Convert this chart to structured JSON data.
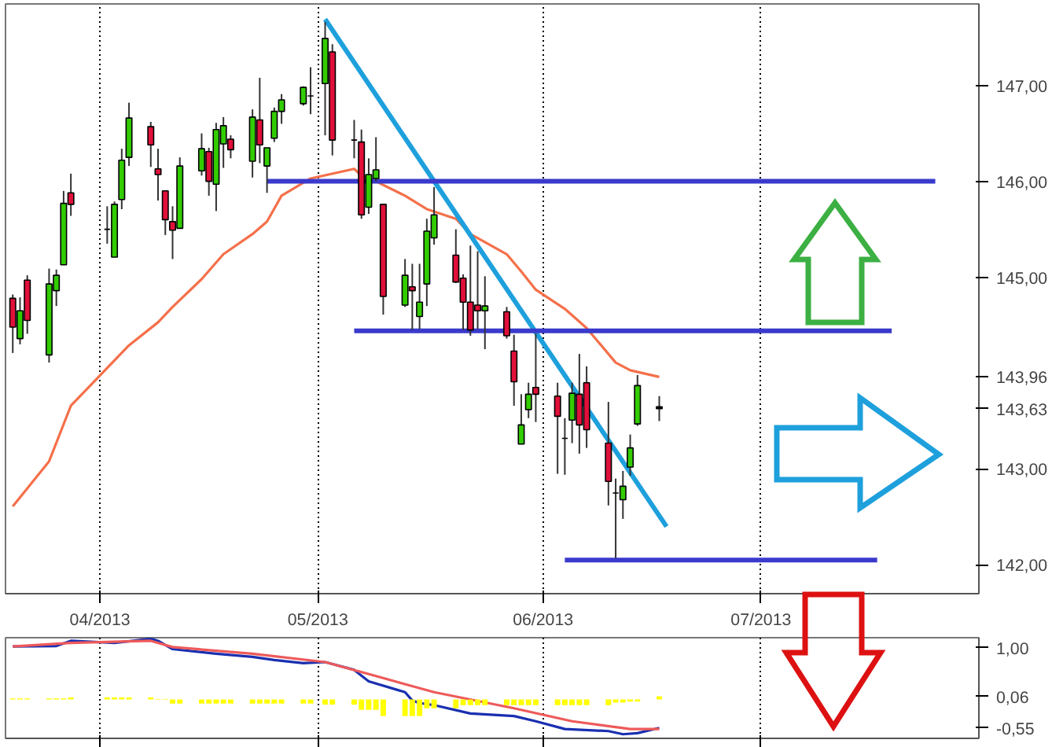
{
  "chart_data": [
    {
      "type": "candlestick",
      "x": [
        "2013-03-20",
        "2013-03-21",
        "2013-03-22",
        "2013-03-25",
        "2013-03-26",
        "2013-03-27",
        "2013-03-28",
        "2013-04-02",
        "2013-04-03",
        "2013-04-04",
        "2013-04-05",
        "2013-04-08",
        "2013-04-09",
        "2013-04-10",
        "2013-04-11",
        "2013-04-12",
        "2013-04-15",
        "2013-04-16",
        "2013-04-17",
        "2013-04-18",
        "2013-04-19",
        "2013-04-22",
        "2013-04-23",
        "2013-04-24",
        "2013-04-25",
        "2013-04-26",
        "2013-04-29",
        "2013-04-30",
        "2013-05-02",
        "2013-05-03",
        "2013-05-06",
        "2013-05-07",
        "2013-05-08",
        "2013-05-09",
        "2013-05-10",
        "2013-05-13",
        "2013-05-14",
        "2013-05-15",
        "2013-05-16",
        "2013-05-17",
        "2013-05-20",
        "2013-05-21",
        "2013-05-22",
        "2013-05-23",
        "2013-05-24",
        "2013-05-27",
        "2013-05-28",
        "2013-05-29",
        "2013-05-30",
        "2013-05-31",
        "2013-06-03",
        "2013-06-04",
        "2013-06-05",
        "2013-06-06",
        "2013-06-07",
        "2013-06-10",
        "2013-06-11",
        "2013-06-12",
        "2013-06-13",
        "2013-06-14",
        "2013-06-17"
      ],
      "ohlc": [
        [
          144.78,
          144.82,
          144.21,
          144.48
        ],
        [
          144.36,
          144.79,
          144.3,
          144.65
        ],
        [
          144.97,
          145.02,
          144.41,
          144.55
        ],
        [
          144.19,
          145.09,
          144.11,
          144.93
        ],
        [
          144.86,
          145.08,
          144.7,
          145.02
        ],
        [
          145.13,
          145.9,
          145.13,
          145.77
        ],
        [
          145.88,
          146.08,
          145.64,
          145.76
        ],
        [
          145.5,
          145.74,
          145.35,
          145.5
        ],
        [
          145.21,
          145.79,
          145.21,
          145.76
        ],
        [
          145.81,
          146.34,
          145.71,
          146.22
        ],
        [
          146.25,
          146.82,
          146.16,
          146.66
        ],
        [
          146.57,
          146.62,
          146.15,
          146.38
        ],
        [
          146.13,
          146.34,
          145.8,
          146.07
        ],
        [
          145.9,
          145.9,
          145.44,
          145.6
        ],
        [
          145.58,
          145.74,
          145.19,
          145.49
        ],
        [
          145.51,
          146.25,
          145.51,
          146.16
        ],
        [
          146.11,
          146.5,
          146.06,
          146.34
        ],
        [
          146.31,
          146.35,
          145.85,
          146.0
        ],
        [
          145.97,
          146.61,
          145.69,
          146.54
        ],
        [
          146.39,
          146.67,
          146.14,
          146.58
        ],
        [
          146.44,
          146.48,
          146.24,
          146.33
        ],
        [
          146.21,
          146.75,
          146.04,
          146.67
        ],
        [
          146.64,
          147.08,
          146.19,
          146.38
        ],
        [
          146.16,
          146.35,
          145.88,
          146.35
        ],
        [
          146.45,
          146.77,
          146.41,
          146.73
        ],
        [
          146.73,
          146.91,
          146.6,
          146.85
        ],
        [
          146.81,
          146.99,
          146.79,
          146.98
        ],
        [
          146.89,
          147.19,
          146.7,
          146.89
        ],
        [
          147.02,
          147.66,
          146.48,
          147.49
        ],
        [
          147.35,
          147.43,
          146.27,
          146.43
        ],
        [
          146.43,
          146.64,
          146.24,
          146.43
        ],
        [
          146.41,
          146.54,
          145.61,
          145.65
        ],
        [
          145.73,
          146.24,
          145.66,
          146.07
        ],
        [
          146.03,
          146.46,
          146.0,
          146.12
        ],
        [
          145.76,
          145.76,
          144.61,
          144.8
        ],
        [
          144.71,
          145.19,
          144.69,
          145.02
        ],
        [
          144.9,
          145.14,
          144.45,
          144.86
        ],
        [
          144.59,
          145.14,
          144.46,
          144.74
        ],
        [
          144.93,
          145.61,
          144.7,
          145.48
        ],
        [
          145.41,
          145.94,
          145.34,
          145.65
        ],
        [
          145.23,
          145.5,
          144.94,
          144.95
        ],
        [
          144.99,
          145.03,
          144.45,
          144.74
        ],
        [
          144.74,
          145.33,
          144.39,
          144.45
        ],
        [
          144.71,
          145.27,
          144.46,
          144.65
        ],
        [
          144.65,
          145.01,
          144.25,
          144.7
        ],
        [
          144.64,
          144.69,
          144.36,
          144.39
        ],
        [
          144.23,
          144.4,
          143.66,
          143.91
        ],
        [
          143.26,
          143.78,
          143.26,
          143.46
        ],
        [
          143.62,
          143.9,
          143.53,
          143.78
        ],
        [
          143.85,
          144.41,
          143.49,
          143.78
        ],
        [
          143.76,
          143.9,
          142.95,
          143.55
        ],
        [
          143.32,
          143.53,
          142.94,
          143.32
        ],
        [
          143.51,
          143.9,
          143.27,
          143.79
        ],
        [
          143.78,
          144.2,
          143.16,
          143.46
        ],
        [
          143.9,
          144.07,
          143.22,
          143.41
        ],
        [
          143.27,
          143.7,
          142.62,
          142.87
        ],
        [
          142.75,
          142.9,
          142.07,
          142.75
        ],
        [
          142.68,
          142.98,
          142.48,
          142.82
        ],
        [
          143.02,
          143.36,
          142.93,
          143.22
        ],
        [
          143.47,
          143.98,
          143.45,
          143.87
        ],
        [
          143.65,
          143.76,
          143.5,
          143.63
        ]
      ],
      "colors": [
        "#e0103a",
        "#33cc00",
        "#e0103a",
        "#33cc00",
        "#33cc00",
        "#33cc00",
        "#e0103a",
        "#000000",
        "#33cc00",
        "#33cc00",
        "#33cc00",
        "#e0103a",
        "#e0103a",
        "#e0103a",
        "#e0103a",
        "#33cc00",
        "#33cc00",
        "#e0103a",
        "#33cc00",
        "#33cc00",
        "#e0103a",
        "#33cc00",
        "#e0103a",
        "#33cc00",
        "#33cc00",
        "#33cc00",
        "#33cc00",
        "#000000",
        "#33cc00",
        "#e0103a",
        "#000000",
        "#e0103a",
        "#33cc00",
        "#33cc00",
        "#e0103a",
        "#33cc00",
        "#e0103a",
        "#33cc00",
        "#33cc00",
        "#33cc00",
        "#e0103a",
        "#e0103a",
        "#e0103a",
        "#e0103a",
        "#33cc00",
        "#e0103a",
        "#e0103a",
        "#33cc00",
        "#33cc00",
        "#e0103a",
        "#e0103a",
        "#000000",
        "#33cc00",
        "#e0103a",
        "#e0103a",
        "#e0103a",
        "#000000",
        "#33cc00",
        "#33cc00",
        "#33cc00",
        "#000000"
      ],
      "series": [
        {
          "type": "line",
          "color": "#f4704a",
          "x": [
            "2013-03-20",
            "2013-03-25",
            "2013-03-28",
            "2013-04-05",
            "2013-04-09",
            "2013-04-11",
            "2013-04-15",
            "2013-04-18",
            "2013-04-22",
            "2013-04-24",
            "2013-04-26",
            "2013-04-30",
            "2013-05-06",
            "2013-05-07",
            "2013-05-09",
            "2013-05-13",
            "2013-05-16",
            "2013-05-20",
            "2013-05-22",
            "2013-05-27",
            "2013-05-29",
            "2013-05-31",
            "2013-06-04",
            "2013-06-07",
            "2013-06-11",
            "2013-06-13",
            "2013-06-17"
          ],
          "values": [
            142.61,
            143.08,
            143.66,
            144.29,
            144.53,
            144.69,
            144.98,
            145.24,
            145.45,
            145.58,
            145.85,
            146.03,
            146.13,
            146.06,
            146.0,
            145.85,
            145.71,
            145.61,
            145.45,
            145.24,
            145.06,
            144.87,
            144.67,
            144.47,
            144.11,
            144.03,
            143.96
          ]
        },
        {
          "type": "line",
          "color": "#1ea0dc",
          "x": [
            "2013-05-02",
            "2013-06-18"
          ],
          "values": [
            147.69,
            142.4
          ]
        },
        {
          "type": "line",
          "color": "#3a3acc",
          "x": [
            "2013-04-24",
            "2013-07-25"
          ],
          "values": [
            146.0,
            146.0
          ]
        },
        {
          "type": "line",
          "color": "#3a3acc",
          "x": [
            "2013-05-06",
            "2013-07-19"
          ],
          "values": [
            144.44,
            144.44
          ]
        },
        {
          "type": "line",
          "color": "#3a3acc",
          "x": [
            "2013-06-04",
            "2013-07-17"
          ],
          "values": [
            142.05,
            142.05
          ]
        }
      ],
      "xlim": [
        "2013-03-19",
        "2013-07-31"
      ],
      "xticks": [
        {
          "value": "2013-04-01",
          "label": "04/2013"
        },
        {
          "value": "2013-05-01",
          "label": "05/2013"
        },
        {
          "value": "2013-06-01",
          "label": "06/2013"
        },
        {
          "value": "2013-07-01",
          "label": "07/2013"
        }
      ],
      "ylim": [
        141.7,
        147.85
      ],
      "yticks": [
        {
          "value": 142,
          "label": "142,00"
        },
        {
          "value": 143,
          "label": "143,00"
        },
        {
          "value": 143.63,
          "label": "143,63"
        },
        {
          "value": 143.96,
          "label": "143,96"
        },
        {
          "value": 145,
          "label": "145,00"
        },
        {
          "value": 146,
          "label": "146,00"
        },
        {
          "value": 147,
          "label": "147,00"
        }
      ],
      "grid": "x"
    },
    {
      "type": "line",
      "series": [
        {
          "type": "bar",
          "color": "#ffff00",
          "x": [
            "2013-03-20",
            "2013-03-21",
            "2013-03-22",
            "2013-03-25",
            "2013-03-26",
            "2013-03-27",
            "2013-03-28",
            "2013-04-02",
            "2013-04-03",
            "2013-04-04",
            "2013-04-05",
            "2013-04-08",
            "2013-04-09",
            "2013-04-10",
            "2013-04-11",
            "2013-04-12",
            "2013-04-15",
            "2013-04-16",
            "2013-04-17",
            "2013-04-18",
            "2013-04-19",
            "2013-04-22",
            "2013-04-23",
            "2013-04-24",
            "2013-04-25",
            "2013-04-26",
            "2013-04-29",
            "2013-04-30",
            "2013-05-02",
            "2013-05-03",
            "2013-05-06",
            "2013-05-07",
            "2013-05-08",
            "2013-05-09",
            "2013-05-10",
            "2013-05-13",
            "2013-05-14",
            "2013-05-15",
            "2013-05-16",
            "2013-05-17",
            "2013-05-20",
            "2013-05-21",
            "2013-05-22",
            "2013-05-23",
            "2013-05-24",
            "2013-05-27",
            "2013-05-28",
            "2013-05-29",
            "2013-05-30",
            "2013-05-31",
            "2013-06-03",
            "2013-06-04",
            "2013-06-05",
            "2013-06-06",
            "2013-06-07",
            "2013-06-10",
            "2013-06-11",
            "2013-06-12",
            "2013-06-13",
            "2013-06-14",
            "2013-06-17"
          ],
          "values": [
            0.02,
            0.02,
            0.02,
            0.02,
            0.02,
            0.02,
            0.04,
            0.04,
            0.04,
            0.04,
            0.04,
            0.04,
            0.01,
            0.01,
            -0.08,
            -0.08,
            -0.08,
            -0.08,
            -0.08,
            -0.08,
            -0.08,
            -0.08,
            -0.08,
            -0.08,
            -0.08,
            -0.08,
            -0.08,
            -0.08,
            -0.1,
            -0.1,
            -0.1,
            -0.2,
            -0.2,
            -0.2,
            -0.32,
            -0.32,
            -0.32,
            -0.32,
            -0.17,
            -0.17,
            -0.17,
            -0.11,
            -0.11,
            -0.11,
            -0.11,
            -0.11,
            -0.11,
            -0.11,
            -0.11,
            -0.11,
            -0.11,
            -0.11,
            -0.11,
            -0.11,
            -0.11,
            -0.11,
            -0.06,
            -0.06,
            -0.04,
            -0.04,
            0.06
          ]
        },
        {
          "type": "line",
          "color": "#1a2fb0",
          "x": [
            "2013-03-20",
            "2013-03-26",
            "2013-03-28",
            "2013-04-03",
            "2013-04-08",
            "2013-04-09",
            "2013-04-11",
            "2013-04-17",
            "2013-04-22",
            "2013-04-25",
            "2013-04-29",
            "2013-05-02",
            "2013-05-06",
            "2013-05-08",
            "2013-05-13",
            "2013-05-14",
            "2013-05-15",
            "2013-05-17",
            "2013-05-22",
            "2013-05-28",
            "2013-05-31",
            "2013-06-04",
            "2013-06-10",
            "2013-06-12",
            "2013-06-14",
            "2013-06-17"
          ],
          "values": [
            1.02,
            1.03,
            1.13,
            1.09,
            1.17,
            1.13,
            0.97,
            0.88,
            0.82,
            0.76,
            0.7,
            0.72,
            0.57,
            0.35,
            0.14,
            -0.02,
            -0.07,
            -0.11,
            -0.27,
            -0.32,
            -0.42,
            -0.57,
            -0.61,
            -0.67,
            -0.65,
            -0.55
          ]
        },
        {
          "type": "line",
          "color": "#ee5a5a",
          "x": [
            "2013-03-20",
            "2013-03-28",
            "2013-04-08",
            "2013-04-11",
            "2013-04-22",
            "2013-05-02",
            "2013-05-09",
            "2013-05-17",
            "2013-05-28",
            "2013-06-05",
            "2013-06-13",
            "2013-06-17"
          ],
          "values": [
            1.02,
            1.09,
            1.13,
            1.01,
            0.88,
            0.72,
            0.45,
            0.14,
            -0.17,
            -0.42,
            -0.57,
            -0.57
          ]
        }
      ],
      "xlim": [
        "2013-03-19",
        "2013-07-31"
      ],
      "xticks": [
        {
          "value": "2013-04-01",
          "label": null
        },
        {
          "value": "2013-05-01",
          "label": null
        },
        {
          "value": "2013-06-01",
          "label": null
        },
        {
          "value": "2013-07-01",
          "label": null
        }
      ],
      "ylim": [
        -0.75,
        1.19
      ],
      "yticks": [
        {
          "value": 1,
          "label": "1,00"
        },
        {
          "value": 0.06,
          "label": "0,06"
        },
        {
          "value": -0.55,
          "label": "-0,55"
        }
      ],
      "grid": "x",
      "tick_labels": "y"
    }
  ]
}
